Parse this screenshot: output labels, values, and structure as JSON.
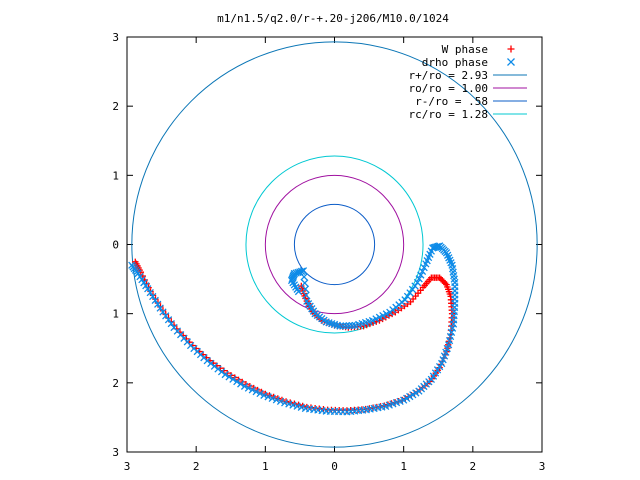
{
  "chart_data": {
    "type": "scatter",
    "title": "m1/n1.5/q2.0/r-+.20-j206/M10.0/1024",
    "xlabel": "",
    "ylabel": "",
    "xlim": [
      -3,
      3
    ],
    "ylim": [
      -3,
      3
    ],
    "x_ticks": [
      -3,
      -2,
      -1,
      0,
      1,
      2,
      3
    ],
    "y_ticks": [
      -3,
      -2,
      -1,
      0,
      1,
      2,
      3
    ],
    "x_tick_labels": [
      "3",
      "2",
      "1",
      "0",
      "1",
      "2",
      "3"
    ],
    "y_tick_labels": [
      "3",
      "2",
      "1",
      "0",
      "1",
      "2",
      "3"
    ],
    "grid": false,
    "legend_position": "top-right",
    "circles": [
      {
        "name": "r+/ro = 2.93",
        "radius": 2.93,
        "color": "#0b76b6"
      },
      {
        "name": "ro/ro = 1.00",
        "radius": 1.0,
        "color": "#a011a0"
      },
      {
        "name": "r-/ro = .58",
        "radius": 0.58,
        "color": "#0b5cc7"
      },
      {
        "name": "rc/ro = 1.28",
        "radius": 1.28,
        "color": "#00c8d2"
      }
    ],
    "series": [
      {
        "name": "W phase",
        "marker": "+",
        "color": "#ff0000",
        "points": [
          [
            -0.48,
            -0.6
          ],
          [
            -0.42,
            -0.78
          ],
          [
            -0.32,
            -0.97
          ],
          [
            -0.18,
            -1.1
          ],
          [
            0.0,
            -1.17
          ],
          [
            0.2,
            -1.2
          ],
          [
            0.42,
            -1.18
          ],
          [
            0.65,
            -1.1
          ],
          [
            0.88,
            -0.98
          ],
          [
            1.1,
            -0.83
          ],
          [
            1.28,
            -0.62
          ],
          [
            1.4,
            -0.48
          ],
          [
            1.52,
            -0.48
          ],
          [
            1.62,
            -0.58
          ],
          [
            1.68,
            -0.75
          ],
          [
            1.7,
            -1.0
          ],
          [
            1.68,
            -1.3
          ],
          [
            1.62,
            -1.55
          ],
          [
            1.52,
            -1.78
          ],
          [
            1.38,
            -1.98
          ],
          [
            1.2,
            -2.13
          ],
          [
            0.98,
            -2.25
          ],
          [
            0.72,
            -2.33
          ],
          [
            0.45,
            -2.38
          ],
          [
            0.18,
            -2.4
          ],
          [
            -0.1,
            -2.39
          ],
          [
            -0.4,
            -2.35
          ],
          [
            -0.7,
            -2.27
          ],
          [
            -1.0,
            -2.16
          ],
          [
            -1.28,
            -2.02
          ],
          [
            -1.55,
            -1.86
          ],
          [
            -1.8,
            -1.68
          ],
          [
            -2.05,
            -1.46
          ],
          [
            -2.28,
            -1.22
          ],
          [
            -2.48,
            -0.96
          ],
          [
            -2.66,
            -0.68
          ],
          [
            -2.8,
            -0.4
          ],
          [
            -2.88,
            -0.25
          ]
        ]
      },
      {
        "name": "drho phase",
        "marker": "x",
        "color": "#0d8be8",
        "points": [
          [
            -0.52,
            -0.68
          ],
          [
            -0.62,
            -0.52
          ],
          [
            -0.58,
            -0.42
          ],
          [
            -0.45,
            -0.38
          ],
          [
            -0.4,
            -0.82
          ],
          [
            -0.28,
            -1.0
          ],
          [
            -0.12,
            -1.12
          ],
          [
            0.08,
            -1.18
          ],
          [
            0.3,
            -1.17
          ],
          [
            0.55,
            -1.1
          ],
          [
            0.8,
            -0.98
          ],
          [
            1.02,
            -0.8
          ],
          [
            1.2,
            -0.55
          ],
          [
            1.32,
            -0.28
          ],
          [
            1.42,
            -0.05
          ],
          [
            1.52,
            -0.02
          ],
          [
            1.62,
            -0.12
          ],
          [
            1.7,
            -0.3
          ],
          [
            1.74,
            -0.55
          ],
          [
            1.74,
            -0.85
          ],
          [
            1.72,
            -1.15
          ],
          [
            1.65,
            -1.45
          ],
          [
            1.55,
            -1.72
          ],
          [
            1.4,
            -1.95
          ],
          [
            1.22,
            -2.12
          ],
          [
            1.0,
            -2.25
          ],
          [
            0.74,
            -2.34
          ],
          [
            0.46,
            -2.39
          ],
          [
            0.18,
            -2.42
          ],
          [
            -0.12,
            -2.41
          ],
          [
            -0.42,
            -2.37
          ],
          [
            -0.72,
            -2.29
          ],
          [
            -1.02,
            -2.18
          ],
          [
            -1.3,
            -2.05
          ],
          [
            -1.58,
            -1.88
          ],
          [
            -1.84,
            -1.68
          ],
          [
            -2.08,
            -1.46
          ],
          [
            -2.32,
            -1.2
          ],
          [
            -2.52,
            -0.92
          ],
          [
            -2.7,
            -0.64
          ],
          [
            -2.84,
            -0.42
          ],
          [
            -2.93,
            -0.3
          ]
        ]
      }
    ]
  }
}
